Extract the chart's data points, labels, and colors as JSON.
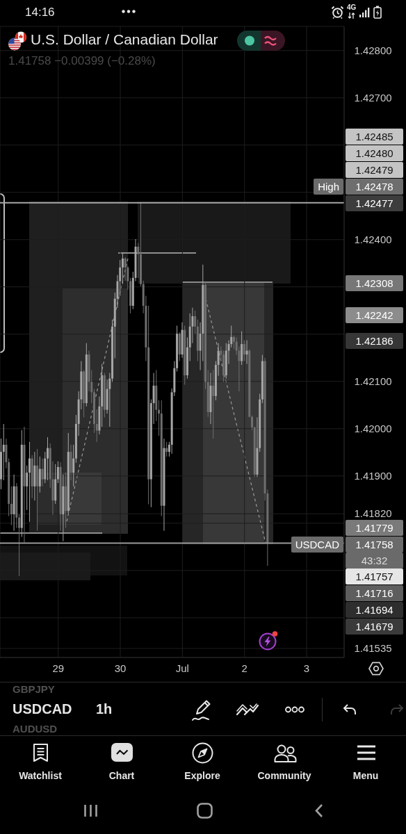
{
  "chart_data": {
    "type": "candlestick",
    "title": "U.S. Dollar / Canadian Dollar",
    "subtitle": "1.41758 −0.00399 (−0.28%)",
    "categories": [
      null,
      null,
      null,
      null,
      null,
      null,
      null,
      null,
      null,
      null,
      null,
      null,
      null,
      null,
      null,
      null,
      null,
      null,
      null,
      null,
      null,
      null,
      "29",
      null,
      null,
      null,
      null,
      null,
      null,
      null,
      null,
      null,
      null,
      null,
      null,
      null,
      null,
      null,
      null,
      null,
      null,
      null,
      null,
      null,
      null,
      null,
      "30",
      null,
      null,
      null,
      null,
      null,
      null,
      null,
      null,
      null,
      null,
      null,
      null,
      null,
      null,
      null,
      null,
      null,
      null,
      null,
      null,
      null,
      null,
      null,
      "Jul",
      null,
      null,
      null,
      null,
      null,
      null,
      null,
      null,
      null,
      null,
      null,
      null,
      null,
      null,
      null,
      null,
      null,
      null,
      null,
      null,
      null,
      null,
      null,
      "2",
      null,
      null,
      null,
      null,
      null,
      null,
      null,
      null,
      null,
      null,
      null,
      null,
      null,
      null,
      null,
      null,
      null,
      null,
      null,
      null,
      null,
      null,
      null,
      "3",
      null,
      null,
      null,
      null,
      null,
      null,
      null,
      null,
      null,
      null,
      null,
      null,
      null,
      null
    ],
    "ohlc": [
      [
        1.41893,
        1.41979,
        1.41872,
        1.41951
      ],
      [
        1.41951,
        1.4201,
        1.41891,
        1.41966
      ],
      [
        1.41966,
        1.41979,
        1.41916,
        1.41929
      ],
      [
        1.41929,
        1.41937,
        1.41815,
        1.41841
      ],
      [
        1.41841,
        1.41878,
        1.41796,
        1.41819
      ],
      [
        1.41819,
        1.41903,
        1.41784,
        1.41878
      ],
      [
        1.41878,
        1.41885,
        1.4179,
        1.41812
      ],
      [
        1.41812,
        1.41819,
        1.41688,
        1.4179
      ],
      [
        1.4179,
        1.41997,
        1.41771,
        1.41966
      ],
      [
        1.41966,
        1.42004,
        1.41759,
        1.41878
      ],
      [
        1.41878,
        1.41922,
        1.41828,
        1.41907
      ],
      [
        1.41907,
        1.41972,
        1.41803,
        1.41937
      ],
      [
        1.41937,
        1.41944,
        1.41853,
        1.41878
      ],
      [
        1.41878,
        1.41951,
        1.41848,
        1.41922
      ],
      [
        1.41922,
        1.41957,
        1.41784,
        1.41878
      ],
      [
        1.41878,
        1.41941,
        1.41865,
        1.41915
      ],
      [
        1.41915,
        1.41937,
        1.41878,
        1.41893
      ],
      [
        1.41893,
        1.41951,
        1.41885,
        1.41937
      ],
      [
        1.41937,
        1.41982,
        1.41891,
        1.41959
      ],
      [
        1.41959,
        1.41969,
        1.41875,
        1.41893
      ],
      [
        1.41893,
        1.41931,
        1.41818,
        1.41848
      ],
      [
        1.41848,
        1.41925,
        1.41841,
        1.41893
      ],
      [
        1.41893,
        1.41931,
        1.41885,
        1.41919
      ],
      [
        1.41919,
        1.41929,
        1.41784,
        1.41819
      ],
      [
        1.41819,
        1.41903,
        1.41762,
        1.41878
      ],
      [
        1.41878,
        1.41907,
        1.4179,
        1.41826
      ],
      [
        1.41826,
        1.41991,
        1.41819,
        1.41951
      ],
      [
        1.41951,
        1.41966,
        1.41891,
        1.41907
      ],
      [
        1.41907,
        1.41966,
        1.41878,
        1.41937
      ],
      [
        1.41937,
        1.42029,
        1.41928,
        1.4201
      ],
      [
        1.4201,
        1.42079,
        1.41985,
        1.42062
      ],
      [
        1.42062,
        1.42143,
        1.42041,
        1.42121
      ],
      [
        1.42121,
        1.42124,
        1.42024,
        1.42054
      ],
      [
        1.42054,
        1.42181,
        1.42047,
        1.42157
      ],
      [
        1.42157,
        1.42165,
        1.42079,
        1.42099
      ],
      [
        1.42099,
        1.42124,
        1.42054,
        1.42077
      ],
      [
        1.42077,
        1.42084,
        1.41991,
        1.4201
      ],
      [
        1.4201,
        1.42041,
        1.41972,
        1.41996
      ],
      [
        1.41996,
        1.42068,
        1.41988,
        1.42047
      ],
      [
        1.42047,
        1.42137,
        1.42004,
        1.42113
      ],
      [
        1.42113,
        1.42118,
        1.42024,
        1.4204
      ],
      [
        1.4204,
        1.42104,
        1.42032,
        1.42084
      ],
      [
        1.42084,
        1.42118,
        1.42004,
        1.42106
      ],
      [
        1.42106,
        1.42231,
        1.42099,
        1.42216
      ],
      [
        1.42216,
        1.42288,
        1.42149,
        1.42275
      ],
      [
        1.42275,
        1.42325,
        1.42256,
        1.42312
      ],
      [
        1.42312,
        1.42357,
        1.42281,
        1.42341
      ],
      [
        1.42341,
        1.42372,
        1.42306,
        1.4236
      ],
      [
        1.4236,
        1.42363,
        1.42313,
        1.42341
      ],
      [
        1.42341,
        1.42344,
        1.42294,
        1.42312
      ],
      [
        1.42312,
        1.42319,
        1.42244,
        1.4226
      ],
      [
        1.4226,
        1.42332,
        1.42253,
        1.42319
      ],
      [
        1.42319,
        1.42401,
        1.42312,
        1.42385
      ],
      [
        1.42385,
        1.42393,
        1.42319,
        1.42369
      ],
      [
        1.42369,
        1.42478,
        1.42301,
        1.42306
      ],
      [
        1.42306,
        1.42313,
        1.42244,
        1.4226
      ],
      [
        1.4226,
        1.42281,
        1.42143,
        1.42172
      ],
      [
        1.42172,
        1.4226,
        1.4184,
        1.41893
      ],
      [
        1.41893,
        1.42062,
        1.41834,
        1.42054
      ],
      [
        1.42054,
        1.42118,
        1.4201,
        1.42091
      ],
      [
        1.42091,
        1.42124,
        1.42016,
        1.4204
      ],
      [
        1.4204,
        1.4206,
        1.41985,
        1.42032
      ],
      [
        1.42032,
        1.4206,
        1.41815,
        1.41837
      ],
      [
        1.41837,
        1.41979,
        1.41784,
        1.41959
      ],
      [
        1.41959,
        1.41972,
        1.41941,
        1.41951
      ],
      [
        1.41951,
        1.41972,
        1.41941,
        1.41966
      ],
      [
        1.41966,
        1.42085,
        1.41947,
        1.42077
      ],
      [
        1.42077,
        1.42143,
        1.42069,
        1.42128
      ],
      [
        1.42128,
        1.42218,
        1.42121,
        1.42201
      ],
      [
        1.42201,
        1.42204,
        1.42143,
        1.42157
      ],
      [
        1.42157,
        1.42225,
        1.4215,
        1.42209
      ],
      [
        1.42209,
        1.42218,
        1.42093,
        1.42113
      ],
      [
        1.42113,
        1.42193,
        1.42106,
        1.42172
      ],
      [
        1.42172,
        1.42244,
        1.42143,
        1.42216
      ],
      [
        1.42216,
        1.42256,
        1.42181,
        1.42238
      ],
      [
        1.42238,
        1.4225,
        1.422,
        1.42216
      ],
      [
        1.42216,
        1.42231,
        1.42143,
        1.42165
      ],
      [
        1.42165,
        1.42225,
        1.42124,
        1.42201
      ],
      [
        1.42201,
        1.42347,
        1.42143,
        1.42304
      ],
      [
        1.42304,
        1.42312,
        1.42084,
        1.42099
      ],
      [
        1.42099,
        1.42124,
        1.42025,
        1.42035
      ],
      [
        1.42035,
        1.42118,
        1.4201,
        1.42091
      ],
      [
        1.42091,
        1.42124,
        1.41979,
        1.42069
      ],
      [
        1.42069,
        1.42143,
        1.4206,
        1.42135
      ],
      [
        1.42135,
        1.42181,
        1.42112,
        1.42165
      ],
      [
        1.42165,
        1.42174,
        1.42143,
        1.42157
      ],
      [
        1.42157,
        1.42165,
        1.42099,
        1.42113
      ],
      [
        1.42113,
        1.42181,
        1.42106,
        1.42165
      ],
      [
        1.42165,
        1.42187,
        1.42137,
        1.42179
      ],
      [
        1.42179,
        1.42218,
        1.42172,
        1.42194
      ],
      [
        1.42194,
        1.42197,
        1.42168,
        1.42184
      ],
      [
        1.42184,
        1.42193,
        1.42156,
        1.42165
      ],
      [
        1.42165,
        1.42174,
        1.42079,
        1.42143
      ],
      [
        1.42143,
        1.42206,
        1.42135,
        1.42179
      ],
      [
        1.42179,
        1.42187,
        1.42143,
        1.42157
      ],
      [
        1.42157,
        1.42187,
        1.42137,
        1.42165
      ],
      [
        1.42165,
        1.42168,
        1.42024,
        1.42025
      ],
      [
        1.42025,
        1.42028,
        1.41997,
        1.42003
      ],
      [
        1.42003,
        1.42004,
        1.41898,
        1.41903
      ],
      [
        1.41903,
        1.42024,
        1.41898,
        1.41959
      ],
      [
        1.41959,
        1.42074,
        1.41951,
        1.42062
      ],
      [
        1.42062,
        1.42156,
        1.42054,
        1.42143
      ],
      [
        1.42143,
        1.4215,
        1.41848,
        1.41863
      ],
      [
        1.41863,
        1.41871,
        1.4171,
        1.41758
      ],
      null,
      null,
      null,
      null,
      null,
      null,
      null,
      null,
      null,
      null,
      null,
      null,
      null,
      null,
      null,
      null,
      null,
      null,
      null,
      null,
      null,
      null,
      null,
      null,
      null,
      null,
      null,
      null,
      null
    ],
    "colors": [
      "#a6a6a6",
      "#a6a6a6",
      "#6e6e6e",
      "#6e6e6e",
      "#6e6e6e",
      "#a6a6a6",
      "#6e6e6e",
      "#6e6e6e",
      "#a6a6a6",
      "#6e6e6e",
      "#a6a6a6",
      "#a6a6a6",
      "#6e6e6e",
      "#a6a6a6",
      "#6e6e6e",
      "#a6a6a6",
      "#6e6e6e",
      "#a6a6a6",
      "#a6a6a6",
      "#6e6e6e",
      "#6e6e6e",
      "#a6a6a6",
      "#a6a6a6",
      "#6e6e6e",
      "#a6a6a6",
      "#6e6e6e",
      "#a6a6a6",
      "#6e6e6e",
      "#a6a6a6",
      "#a6a6a6",
      "#a6a6a6",
      "#a6a6a6",
      "#6e6e6e",
      "#a6a6a6",
      "#6e6e6e",
      "#6e6e6e",
      "#6e6e6e",
      "#6e6e6e",
      "#a6a6a6",
      "#a6a6a6",
      "#6e6e6e",
      "#a6a6a6",
      "#a6a6a6",
      "#a6a6a6",
      "#a6a6a6",
      "#a6a6a6",
      "#a6a6a6",
      "#a6a6a6",
      "#6e6e6e",
      "#6e6e6e",
      "#6e6e6e",
      "#a6a6a6",
      "#a6a6a6",
      "#6e6e6e",
      "#6e6e6e",
      "#6e6e6e",
      "#6e6e6e",
      "#6e6e6e",
      "#a6a6a6",
      "#a6a6a6",
      "#6e6e6e",
      "#6e6e6e",
      "#6e6e6e",
      "#a6a6a6",
      "#6e6e6e",
      "#a6a6a6",
      "#a6a6a6",
      "#a6a6a6",
      "#a6a6a6",
      "#6e6e6e",
      "#a6a6a6",
      "#6e6e6e",
      "#a6a6a6",
      "#a6a6a6",
      "#a6a6a6",
      "#6e6e6e",
      "#6e6e6e",
      "#a6a6a6",
      "#a6a6a6",
      "#6e6e6e",
      "#6e6e6e",
      "#a6a6a6",
      "#6e6e6e",
      "#a6a6a6",
      "#a6a6a6",
      "#6e6e6e",
      "#6e6e6e",
      "#a6a6a6",
      "#a6a6a6",
      "#a6a6a6",
      "#6e6e6e",
      "#6e6e6e",
      "#6e6e6e",
      "#a6a6a6",
      "#6e6e6e",
      "#a6a6a6",
      "#6e6e6e",
      "#6e6e6e",
      "#6e6e6e",
      "#a6a6a6",
      "#a6a6a6",
      "#a6a6a6",
      "#6e6e6e",
      "#6e6e6e",
      null,
      null,
      null,
      null,
      null,
      null,
      null,
      null,
      null,
      null,
      null,
      null,
      null,
      null,
      null,
      null,
      null,
      null,
      null,
      null,
      null,
      null,
      null,
      null,
      null,
      null,
      null,
      null,
      null
    ],
    "ylim": [
      1.41516,
      1.42851
    ],
    "yticks": [
      {
        "value": 1.428,
        "label": "1.42800"
      },
      {
        "value": 1.427,
        "label": "1.42700"
      },
      {
        "value": 1.426,
        "label": null
      },
      {
        "value": 1.425,
        "label": null
      },
      {
        "value": 1.424,
        "label": "1.42400"
      },
      {
        "value": 1.423,
        "label": null
      },
      {
        "value": 1.422,
        "label": null
      },
      {
        "value": 1.421,
        "label": "1.42100"
      },
      {
        "value": 1.42,
        "label": "1.42000"
      },
      {
        "value": 1.419,
        "label": "1.41900"
      },
      {
        "value": 1.4182,
        "label": "1.41820"
      },
      {
        "value": 1.418,
        "label": null
      },
      {
        "value": 1.417,
        "label": null
      },
      {
        "value": 1.416,
        "label": null
      },
      {
        "value": 1.41535,
        "label": "1.41535"
      }
    ],
    "grid": true,
    "ref_lines": [
      {
        "axis": "y",
        "value": 1.42478,
        "label": "High",
        "color": "#a8a8a8"
      },
      {
        "axis": "y",
        "value": 1.41758,
        "label": "USDCAD",
        "color": "#9a9a9a"
      }
    ],
    "annotations": [
      "1.42477",
      "1.42478",
      "1.42479",
      "1.42480",
      "1.42485",
      "1.42308",
      "1.42242",
      "1.42186",
      "1.41758",
      "43:32",
      "1.41779",
      "1.41757",
      "1.41716",
      "1.41694",
      "1.41679",
      "14:16",
      "4G",
      "GBPJPY",
      "USDCAD",
      "1h",
      "AUDUSD",
      "Watchlist",
      "Chart",
      "Explore",
      "Community",
      "Menu"
    ]
  }
}
